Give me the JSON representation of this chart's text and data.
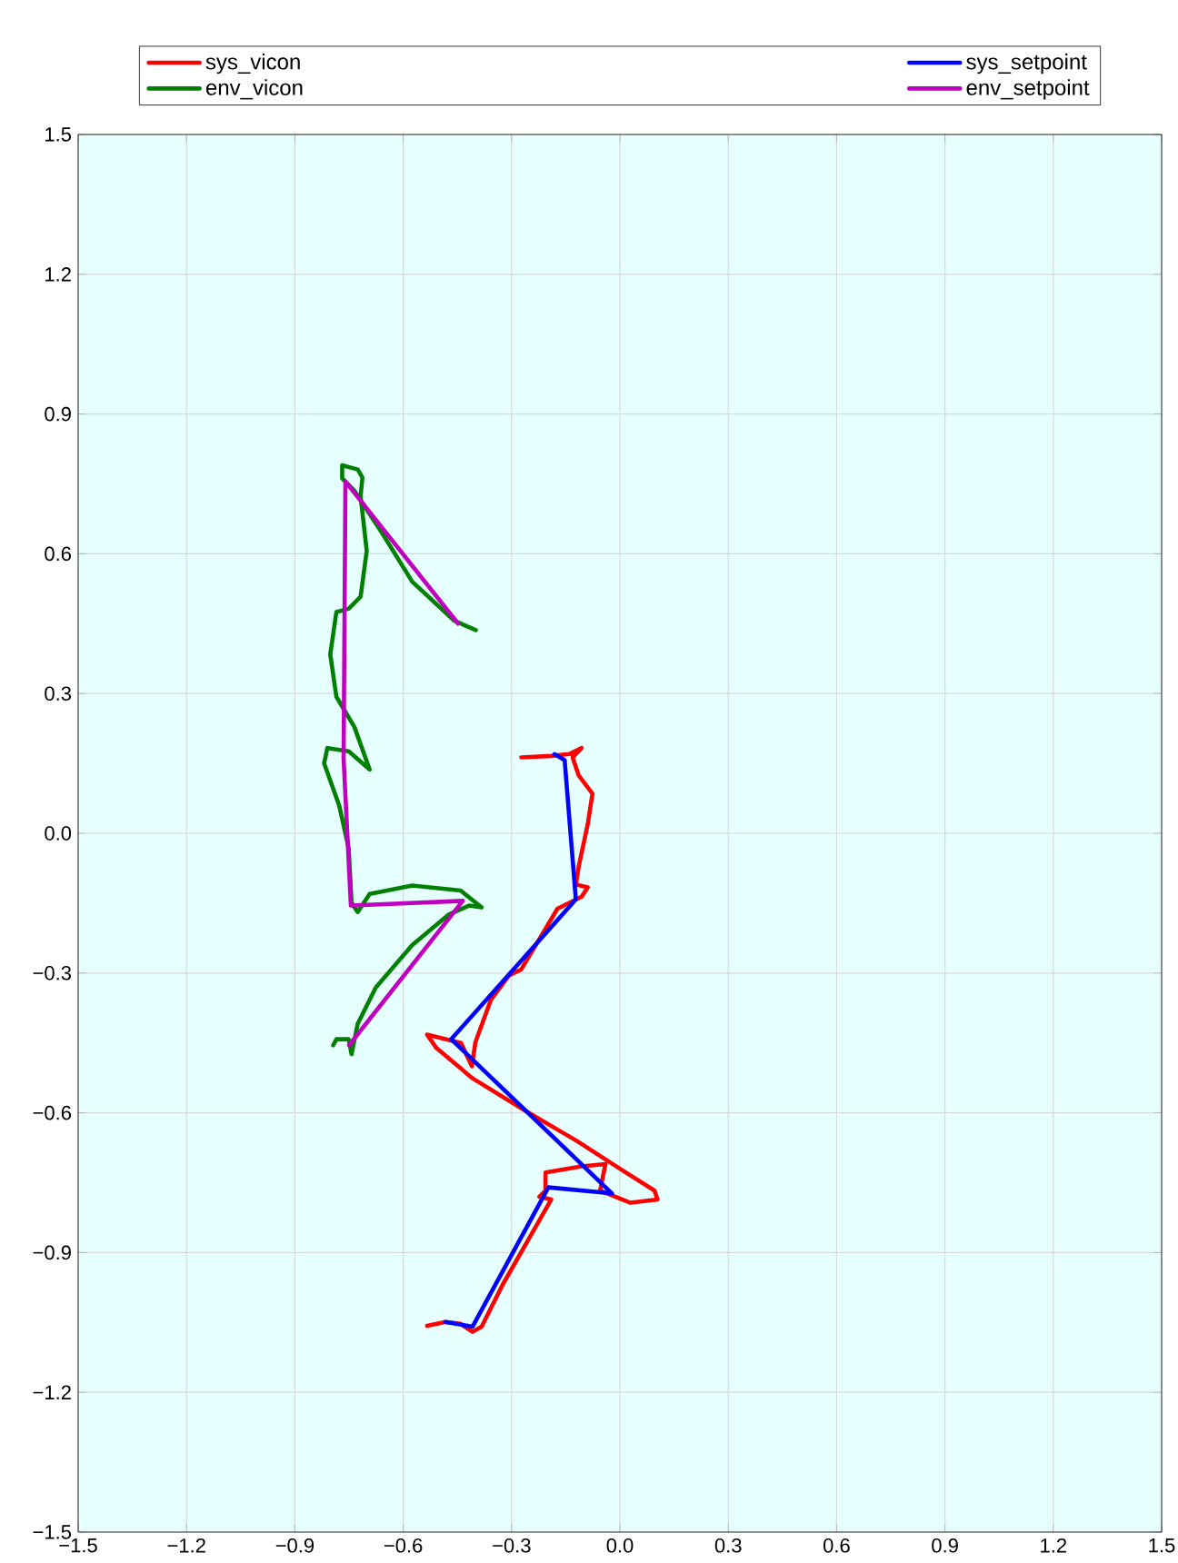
{
  "chart_data": {
    "type": "line",
    "xlim": [
      -1.5,
      1.5
    ],
    "ylim": [
      -1.5,
      1.5
    ],
    "xticks": [
      {
        "value": -1.5,
        "label": "−1.5"
      },
      {
        "value": -1.2,
        "label": "−1.2"
      },
      {
        "value": -0.9,
        "label": "−0.9"
      },
      {
        "value": -0.6,
        "label": "−0.6"
      },
      {
        "value": -0.3,
        "label": "−0.3"
      },
      {
        "value": 0,
        "label": "0.0"
      },
      {
        "value": 0.3,
        "label": "0.3"
      },
      {
        "value": 0.6,
        "label": "0.6"
      },
      {
        "value": 0.9,
        "label": "0.9"
      },
      {
        "value": 1.2,
        "label": "1.2"
      },
      {
        "value": 1.5,
        "label": "1.5"
      }
    ],
    "yticks": [
      {
        "value": -1.5,
        "label": "−1.5"
      },
      {
        "value": -1.2,
        "label": "−1.2"
      },
      {
        "value": -0.9,
        "label": "−0.9"
      },
      {
        "value": -0.6,
        "label": "−0.6"
      },
      {
        "value": -0.3,
        "label": "−0.3"
      },
      {
        "value": 0,
        "label": "0.0"
      },
      {
        "value": 0.3,
        "label": "0.3"
      },
      {
        "value": 0.6,
        "label": "0.6"
      },
      {
        "value": 0.9,
        "label": "0.9"
      },
      {
        "value": 1.2,
        "label": "1.2"
      },
      {
        "value": 1.5,
        "label": "1.5"
      }
    ],
    "grid": true,
    "legend": "top",
    "marker": "none",
    "line_style": "solid",
    "series": [
      {
        "name": "sys_vicon",
        "color": "#ff0000",
        "x": [
          -0.273,
          -0.19,
          -0.14,
          -0.106,
          -0.131,
          -0.114,
          -0.076,
          -0.089,
          -0.114,
          -0.122,
          -0.089,
          -0.106,
          -0.173,
          -0.273,
          -0.307,
          -0.357,
          -0.4,
          -0.41,
          -0.44,
          -0.534,
          -0.508,
          -0.408,
          -0.257,
          -0.12,
          0.0,
          0.096,
          0.104,
          0.029,
          -0.055,
          -0.04,
          -0.106,
          -0.206,
          -0.206,
          -0.223,
          -0.19,
          -0.257,
          -0.324,
          -0.383,
          -0.408,
          -0.441,
          -0.483,
          -0.534
        ],
        "values": [
          0.163,
          0.166,
          0.17,
          0.183,
          0.163,
          0.124,
          0.085,
          0.02,
          -0.071,
          -0.11,
          -0.116,
          -0.136,
          -0.162,
          -0.292,
          -0.305,
          -0.357,
          -0.448,
          -0.5,
          -0.45,
          -0.432,
          -0.461,
          -0.526,
          -0.598,
          -0.66,
          -0.72,
          -0.767,
          -0.786,
          -0.793,
          -0.767,
          -0.71,
          -0.715,
          -0.728,
          -0.767,
          -0.78,
          -0.786,
          -0.877,
          -0.968,
          -1.059,
          -1.07,
          -1.053,
          -1.049,
          -1.057
        ]
      },
      {
        "name": "env_vicon",
        "color": "#008000",
        "x": [
          -0.399,
          -0.458,
          -0.575,
          -0.659,
          -0.735,
          -0.769,
          -0.769,
          -0.726,
          -0.713,
          -0.718,
          -0.701,
          -0.718,
          -0.751,
          -0.785,
          -0.802,
          -0.785,
          -0.735,
          -0.693,
          -0.751,
          -0.81,
          -0.819,
          -0.777,
          -0.751,
          -0.743,
          -0.726,
          -0.693,
          -0.575,
          -0.441,
          -0.383,
          -0.417,
          -0.475,
          -0.575,
          -0.676,
          -0.726,
          -0.743,
          -0.751,
          -0.785,
          -0.794
        ],
        "values": [
          0.436,
          0.456,
          0.54,
          0.645,
          0.735,
          0.762,
          0.79,
          0.781,
          0.764,
          0.723,
          0.606,
          0.508,
          0.482,
          0.475,
          0.384,
          0.293,
          0.228,
          0.137,
          0.176,
          0.183,
          0.15,
          0.059,
          -0.032,
          -0.149,
          -0.169,
          -0.13,
          -0.112,
          -0.123,
          -0.159,
          -0.155,
          -0.175,
          -0.24,
          -0.331,
          -0.409,
          -0.474,
          -0.442,
          -0.442,
          -0.455
        ]
      },
      {
        "name": "sys_setpoint",
        "color": "#0000ff",
        "x": [
          -0.181,
          -0.153,
          -0.122,
          -0.467,
          -0.022,
          -0.198,
          -0.408,
          -0.483
        ],
        "values": [
          0.17,
          0.157,
          -0.142,
          -0.442,
          -0.773,
          -0.76,
          -1.059,
          -1.049
        ]
      },
      {
        "name": "env_setpoint",
        "color": "#bf00bf",
        "x": [
          -0.448,
          -0.76,
          -0.765,
          -0.745,
          -0.435,
          -0.75
        ],
        "values": [
          0.45,
          0.755,
          0.16,
          -0.155,
          -0.145,
          -0.455
        ]
      }
    ]
  }
}
